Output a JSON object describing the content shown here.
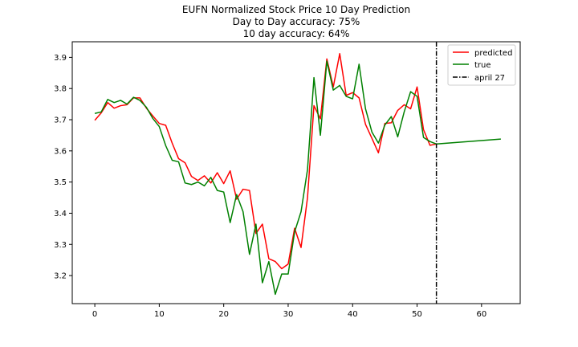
{
  "chart_data": {
    "type": "line",
    "title_lines": [
      "EUFN Normalized Stock Price 10 Day Prediction",
      "Day to Day accuracy: 75%",
      "10 day accuracy: 64%"
    ],
    "xlabel": "",
    "ylabel": "",
    "xlim": [
      -3.5,
      66
    ],
    "ylim": [
      3.11,
      3.95
    ],
    "x_ticks": [
      0,
      10,
      20,
      30,
      40,
      50,
      60
    ],
    "y_ticks": [
      3.2,
      3.3,
      3.4,
      3.5,
      3.6,
      3.7,
      3.8,
      3.9
    ],
    "grid": false,
    "legend_position": "top-right",
    "series": [
      {
        "name": "predicted",
        "color": "#ff0000",
        "x": [
          0,
          1,
          2,
          3,
          4,
          5,
          6,
          7,
          8,
          9,
          10,
          11,
          12,
          13,
          14,
          15,
          16,
          17,
          18,
          19,
          20,
          21,
          22,
          23,
          24,
          25,
          26,
          27,
          28,
          29,
          30,
          31,
          32,
          33,
          34,
          35,
          36,
          37,
          38,
          39,
          40,
          41,
          42,
          43,
          44,
          45,
          46,
          47,
          48,
          49,
          50,
          51,
          52,
          53
        ],
        "y": [
          3.698,
          3.722,
          3.755,
          3.737,
          3.745,
          3.748,
          3.77,
          3.77,
          3.737,
          3.712,
          3.688,
          3.682,
          3.625,
          3.575,
          3.562,
          3.518,
          3.505,
          3.52,
          3.497,
          3.53,
          3.495,
          3.536,
          3.445,
          3.477,
          3.473,
          3.335,
          3.365,
          3.254,
          3.245,
          3.222,
          3.237,
          3.352,
          3.29,
          3.45,
          3.745,
          3.703,
          3.895,
          3.805,
          3.912,
          3.778,
          3.787,
          3.77,
          3.685,
          3.64,
          3.594,
          3.688,
          3.69,
          3.73,
          3.748,
          3.735,
          3.805,
          3.668,
          3.618,
          3.622
        ]
      },
      {
        "name": "true",
        "color": "#008000",
        "x": [
          0,
          1,
          2,
          3,
          4,
          5,
          6,
          7,
          8,
          9,
          10,
          11,
          12,
          13,
          14,
          15,
          16,
          17,
          18,
          19,
          20,
          21,
          22,
          23,
          24,
          25,
          26,
          27,
          28,
          29,
          30,
          31,
          32,
          33,
          34,
          35,
          36,
          37,
          38,
          39,
          40,
          41,
          42,
          43,
          44,
          45,
          46,
          47,
          48,
          49,
          50,
          51,
          52,
          53,
          63
        ],
        "y": [
          3.72,
          3.725,
          3.765,
          3.755,
          3.762,
          3.75,
          3.772,
          3.762,
          3.74,
          3.704,
          3.678,
          3.617,
          3.57,
          3.565,
          3.497,
          3.492,
          3.5,
          3.488,
          3.515,
          3.473,
          3.468,
          3.37,
          3.46,
          3.405,
          3.268,
          3.365,
          3.177,
          3.245,
          3.14,
          3.205,
          3.205,
          3.34,
          3.405,
          3.54,
          3.835,
          3.65,
          3.888,
          3.795,
          3.81,
          3.775,
          3.767,
          3.878,
          3.735,
          3.66,
          3.625,
          3.683,
          3.71,
          3.645,
          3.725,
          3.79,
          3.775,
          3.643,
          3.63,
          3.622,
          3.638
        ]
      }
    ],
    "vline": {
      "name": "april 27",
      "x": 53,
      "color": "#000000",
      "style": "dash-dot"
    }
  }
}
